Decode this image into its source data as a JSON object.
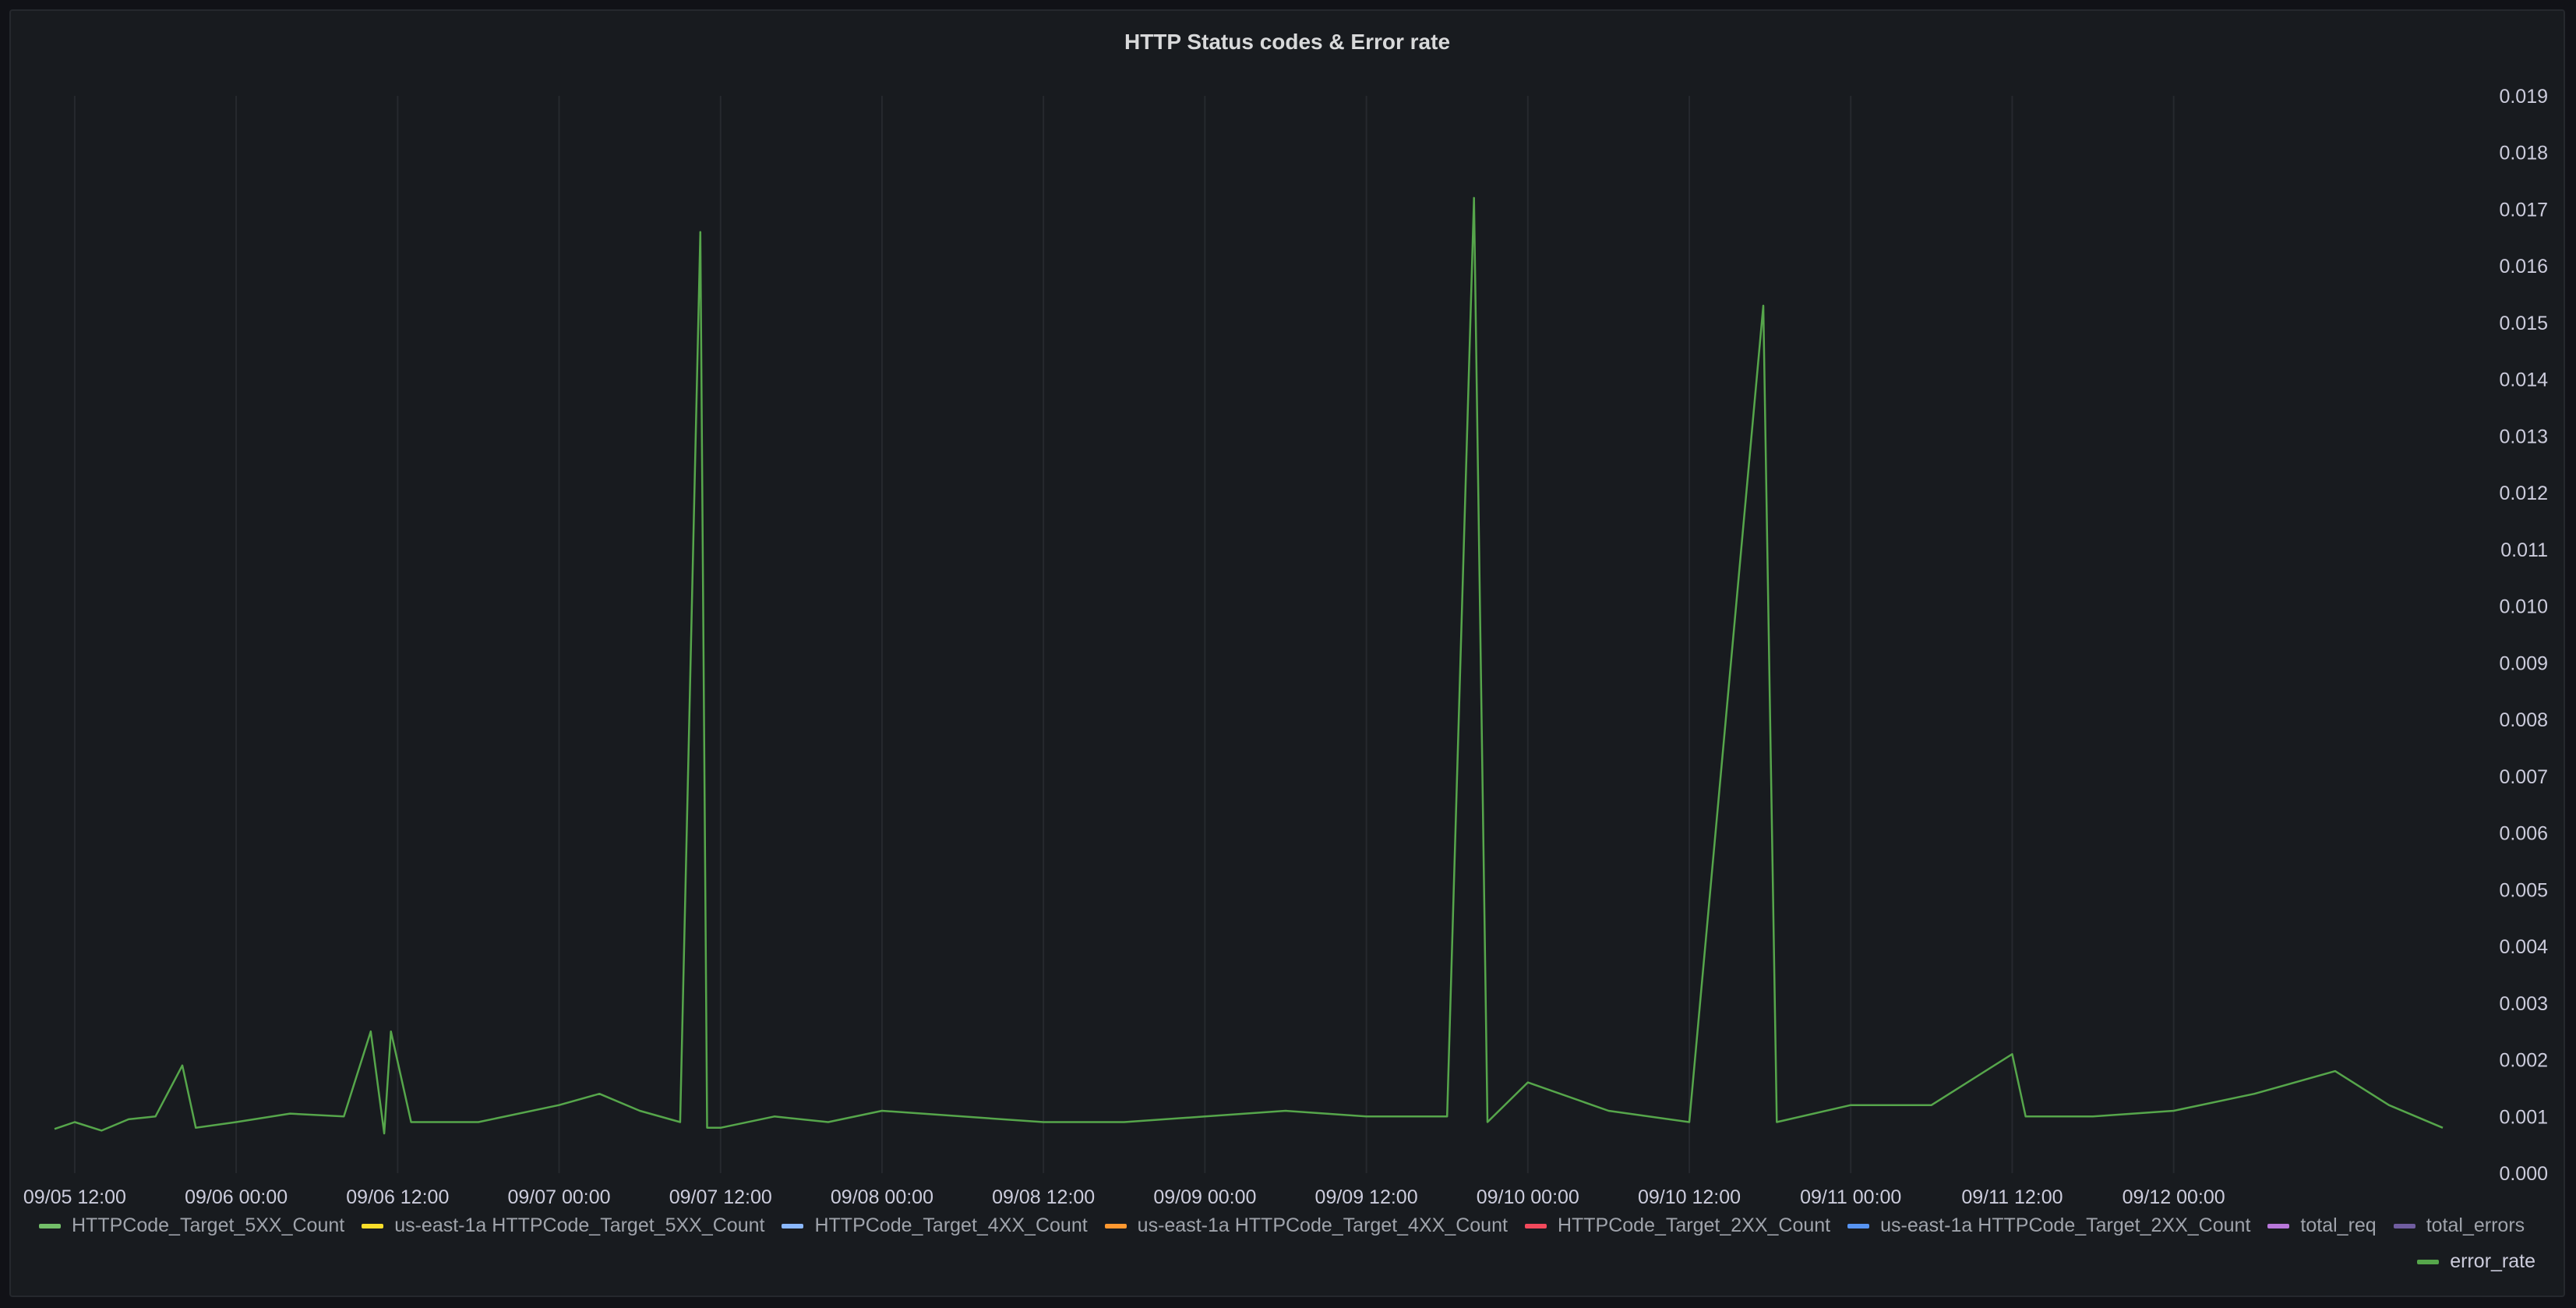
{
  "chart_data": {
    "type": "line",
    "title": "HTTP Status codes & Error rate",
    "xlabel": "",
    "ylabel": "",
    "ylim": [
      0,
      0.019
    ],
    "y_ticks": [
      "0.000",
      "0.001",
      "0.002",
      "0.003",
      "0.004",
      "0.005",
      "0.006",
      "0.007",
      "0.008",
      "0.009",
      "0.010",
      "0.011",
      "0.012",
      "0.013",
      "0.014",
      "0.015",
      "0.016",
      "0.017",
      "0.018",
      "0.019"
    ],
    "x_ticks": [
      "09/05 12:00",
      "09/06 00:00",
      "09/06 12:00",
      "09/07 00:00",
      "09/07 12:00",
      "09/08 00:00",
      "09/08 12:00",
      "09/09 00:00",
      "09/09 12:00",
      "09/10 00:00",
      "09/10 12:00",
      "09/11 00:00",
      "09/11 12:00",
      "09/12 00:00"
    ],
    "x_range": [
      "09/05 10:30",
      "09/12 20:00"
    ],
    "grid": true,
    "y_axis_position": "right",
    "series": [
      {
        "name": "error_rate",
        "color": "#56a64b",
        "points": [
          [
            "09/05 10:30",
            0.00078
          ],
          [
            "09/05 12:00",
            0.0009
          ],
          [
            "09/05 14:00",
            0.00075
          ],
          [
            "09/05 16:00",
            0.00095
          ],
          [
            "09/05 18:00",
            0.001
          ],
          [
            "09/05 20:00",
            0.0019
          ],
          [
            "09/05 21:00",
            0.0008
          ],
          [
            "09/06 00:00",
            0.0009
          ],
          [
            "09/06 04:00",
            0.00105
          ],
          [
            "09/06 08:00",
            0.001
          ],
          [
            "09/06 10:00",
            0.0025
          ],
          [
            "09/06 11:00",
            0.0007
          ],
          [
            "09/06 11:30",
            0.0025
          ],
          [
            "09/06 13:00",
            0.0009
          ],
          [
            "09/06 18:00",
            0.0009
          ],
          [
            "09/07 00:00",
            0.0012
          ],
          [
            "09/07 03:00",
            0.0014
          ],
          [
            "09/07 06:00",
            0.0011
          ],
          [
            "09/07 09:00",
            0.0009
          ],
          [
            "09/07 10:30",
            0.0166
          ],
          [
            "09/07 11:00",
            0.0008
          ],
          [
            "09/07 12:00",
            0.0008
          ],
          [
            "09/07 16:00",
            0.001
          ],
          [
            "09/07 20:00",
            0.0009
          ],
          [
            "09/08 00:00",
            0.0011
          ],
          [
            "09/08 06:00",
            0.001
          ],
          [
            "09/08 12:00",
            0.0009
          ],
          [
            "09/08 18:00",
            0.0009
          ],
          [
            "09/09 00:00",
            0.001
          ],
          [
            "09/09 06:00",
            0.0011
          ],
          [
            "09/09 12:00",
            0.001
          ],
          [
            "09/09 18:00",
            0.001
          ],
          [
            "09/09 20:00",
            0.0172
          ],
          [
            "09/09 21:00",
            0.0009
          ],
          [
            "09/10 00:00",
            0.0016
          ],
          [
            "09/10 06:00",
            0.0011
          ],
          [
            "09/10 12:00",
            0.0009
          ],
          [
            "09/10 17:30",
            0.0153
          ],
          [
            "09/10 18:30",
            0.0009
          ],
          [
            "09/11 00:00",
            0.0012
          ],
          [
            "09/11 06:00",
            0.0012
          ],
          [
            "09/11 12:00",
            0.0021
          ],
          [
            "09/11 13:00",
            0.001
          ],
          [
            "09/11 18:00",
            0.001
          ],
          [
            "09/12 00:00",
            0.0011
          ],
          [
            "09/12 06:00",
            0.0014
          ],
          [
            "09/12 12:00",
            0.0018
          ],
          [
            "09/12 16:00",
            0.0012
          ],
          [
            "09/12 20:00",
            0.0008
          ]
        ]
      }
    ],
    "legend": [
      {
        "label": "HTTPCode_Target_5XX_Count",
        "color": "#73bf69"
      },
      {
        "label": "us-east-1a HTTPCode_Target_5XX_Count",
        "color": "#fade2a"
      },
      {
        "label": "HTTPCode_Target_4XX_Count",
        "color": "#8ab8ff"
      },
      {
        "label": "us-east-1a HTTPCode_Target_4XX_Count",
        "color": "#ff9830"
      },
      {
        "label": "HTTPCode_Target_2XX_Count",
        "color": "#f2495c"
      },
      {
        "label": "us-east-1a HTTPCode_Target_2XX_Count",
        "color": "#5794f2"
      },
      {
        "label": "total_req",
        "color": "#b877d9"
      },
      {
        "label": "total_errors",
        "color": "#705da0"
      }
    ],
    "legend_right": {
      "label": "error_rate",
      "color": "#56a64b"
    }
  }
}
